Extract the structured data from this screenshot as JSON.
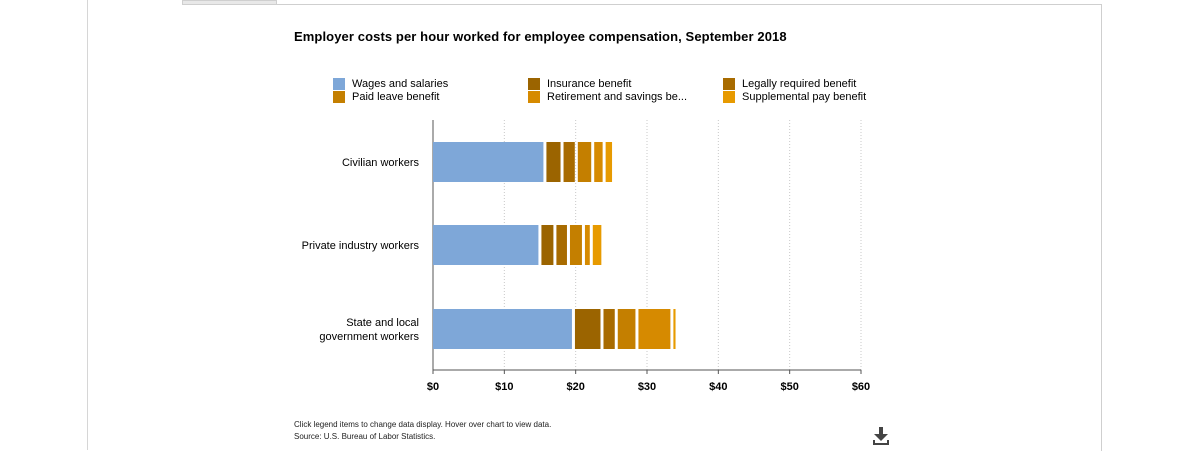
{
  "colors": {
    "wages": "#7ea7d8",
    "insurance": "#9b6400",
    "legal": "#a86b00",
    "paid_leave": "#c47f00",
    "retirement": "#d68a00",
    "supplemental": "#e79a00"
  },
  "legend": [
    {
      "key": "wages",
      "label": "Wages and salaries"
    },
    {
      "key": "insurance",
      "label": "Insurance benefit"
    },
    {
      "key": "legal",
      "label": "Legally required benefit"
    },
    {
      "key": "paid_leave",
      "label": "Paid leave benefit"
    },
    {
      "key": "retirement",
      "label": "Retirement and savings be..."
    },
    {
      "key": "supplemental",
      "label": "Supplemental pay benefit"
    }
  ],
  "footnote": {
    "line1": "Click legend items to change data display. Hover over chart to view data.",
    "line2": "Source: U.S. Bureau of Labor Statistics."
  },
  "icons": {
    "download": "download-icon"
  },
  "chart_data": {
    "type": "bar",
    "orientation": "horizontal",
    "stacked": true,
    "title": "Employer costs per hour worked for employee compensation, September 2018",
    "categories": [
      "Civilian workers",
      "Private industry workers",
      "State and local government workers"
    ],
    "category_lines": [
      [
        "Civilian workers"
      ],
      [
        "Private industry workers"
      ],
      [
        "State and local",
        "government workers"
      ]
    ],
    "series": [
      {
        "key": "wages",
        "name": "Wages and salaries",
        "values": [
          15.9,
          15.2,
          19.9
        ]
      },
      {
        "key": "insurance",
        "name": "Insurance benefit",
        "values": [
          2.4,
          2.1,
          4.0
        ]
      },
      {
        "key": "legal",
        "name": "Legally required benefit",
        "values": [
          2.0,
          1.9,
          2.0
        ]
      },
      {
        "key": "paid_leave",
        "name": "Paid leave benefit",
        "values": [
          2.3,
          2.1,
          2.9
        ]
      },
      {
        "key": "retirement",
        "name": "Retirement and savings be...",
        "values": [
          1.6,
          1.1,
          4.9
        ]
      },
      {
        "key": "supplemental",
        "name": "Supplemental pay benefit",
        "values": [
          0.9,
          1.2,
          0.3
        ]
      }
    ],
    "xlim": [
      0,
      60
    ],
    "xticks": [
      0,
      10,
      20,
      30,
      40,
      50,
      60
    ],
    "xtick_labels": [
      "$0",
      "$10",
      "$20",
      "$30",
      "$40",
      "$50",
      "$60"
    ],
    "grid": "vertical dotted",
    "legend_position": "top"
  }
}
